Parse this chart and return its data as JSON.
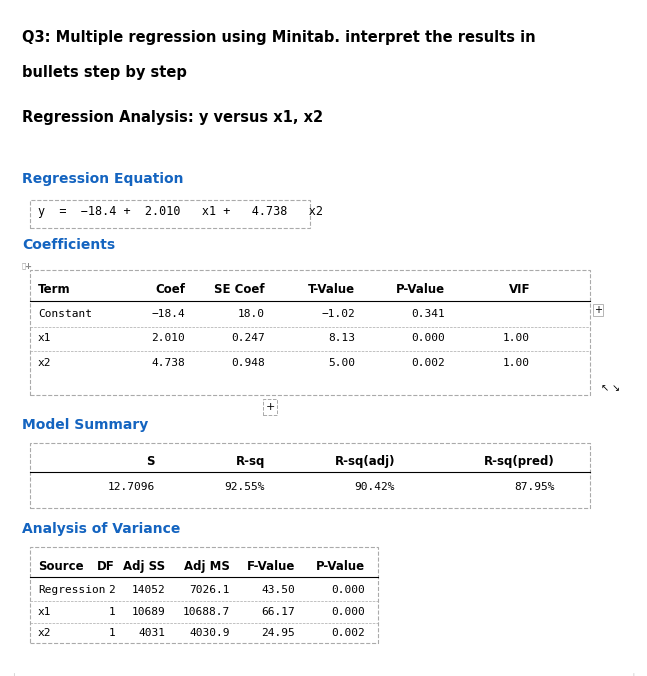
{
  "title_line1": "Q3: Multiple regression using Minitab. interpret the results in",
  "title_line2": "bullets step by step",
  "subtitle": "Regression Analysis: y versus x1, x2",
  "section1": "Regression Equation",
  "equation": "y  =  −18.4 +  2.010   x1 +   4.738   x2",
  "section2": "Coefficients",
  "coef_headers": [
    "Term",
    "Coef",
    "SE Coef",
    "T-Value",
    "P-Value",
    "VIF"
  ],
  "coef_rows": [
    [
      "Constant",
      "−18.4",
      "18.0",
      "−1.02",
      "0.341",
      ""
    ],
    [
      "x1",
      "2.010",
      "0.247",
      "8.13",
      "0.000",
      "1.00"
    ],
    [
      "x2",
      "4.738",
      "0.948",
      "5.00",
      "0.002",
      "1.00"
    ]
  ],
  "section3": "Model Summary",
  "model_headers": [
    "S",
    "R-sq",
    "R-sq(adj)",
    "R-sq(pred)"
  ],
  "model_row": [
    "12.7096",
    "92.55%",
    "90.42%",
    "87.95%"
  ],
  "section4": "Analysis of Variance",
  "anova_headers": [
    "Source",
    "DF",
    "Adj SS",
    "Adj MS",
    "F-Value",
    "P-Value"
  ],
  "anova_rows": [
    [
      "Regression",
      "2",
      "14052",
      "7026.1",
      "43.50",
      "0.000"
    ],
    [
      "x1",
      "1",
      "10689",
      "10688.7",
      "66.17",
      "0.000"
    ],
    [
      "x2",
      "1",
      "4031",
      "4030.9",
      "24.95",
      "0.002"
    ]
  ],
  "blue_color": "#1464C0",
  "black_color": "#000000",
  "bg_color": "#FFFFFF",
  "table_border_color": "#AAAAAA"
}
